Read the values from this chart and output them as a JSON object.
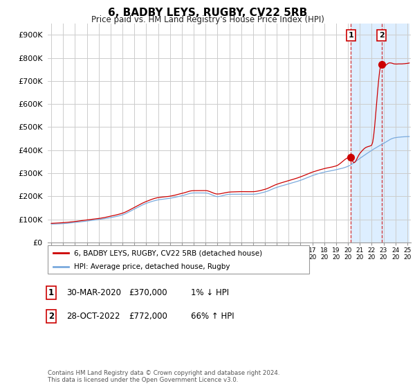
{
  "title": "6, BADBY LEYS, RUGBY, CV22 5RB",
  "subtitle": "Price paid vs. HM Land Registry's House Price Index (HPI)",
  "ylim": [
    0,
    950000
  ],
  "yticks": [
    0,
    100000,
    200000,
    300000,
    400000,
    500000,
    600000,
    700000,
    800000,
    900000
  ],
  "ytick_labels": [
    "£0",
    "£100K",
    "£200K",
    "£300K",
    "£400K",
    "£500K",
    "£600K",
    "£700K",
    "£800K",
    "£900K"
  ],
  "background_color": "#ffffff",
  "grid_color": "#cccccc",
  "hpi_color": "#7aaadd",
  "price_color": "#cc0000",
  "highlight_color": "#ddeeff",
  "sale1_x": 2020.25,
  "sale1_y": 370000,
  "sale2_x": 2022.83,
  "sale2_y": 772000,
  "legend_entries": [
    "6, BADBY LEYS, RUGBY, CV22 5RB (detached house)",
    "HPI: Average price, detached house, Rugby"
  ],
  "annotation_table": [
    [
      "1",
      "30-MAR-2020",
      "£370,000",
      "1% ↓ HPI"
    ],
    [
      "2",
      "28-OCT-2022",
      "£772,000",
      "66% ↑ HPI"
    ]
  ],
  "footer": "Contains HM Land Registry data © Crown copyright and database right 2024.\nThis data is licensed under the Open Government Licence v3.0.",
  "highlight_x_start": 2020.25,
  "highlight_x_end": 2025.2,
  "xlim_start": 1994.7,
  "xlim_end": 2025.3
}
